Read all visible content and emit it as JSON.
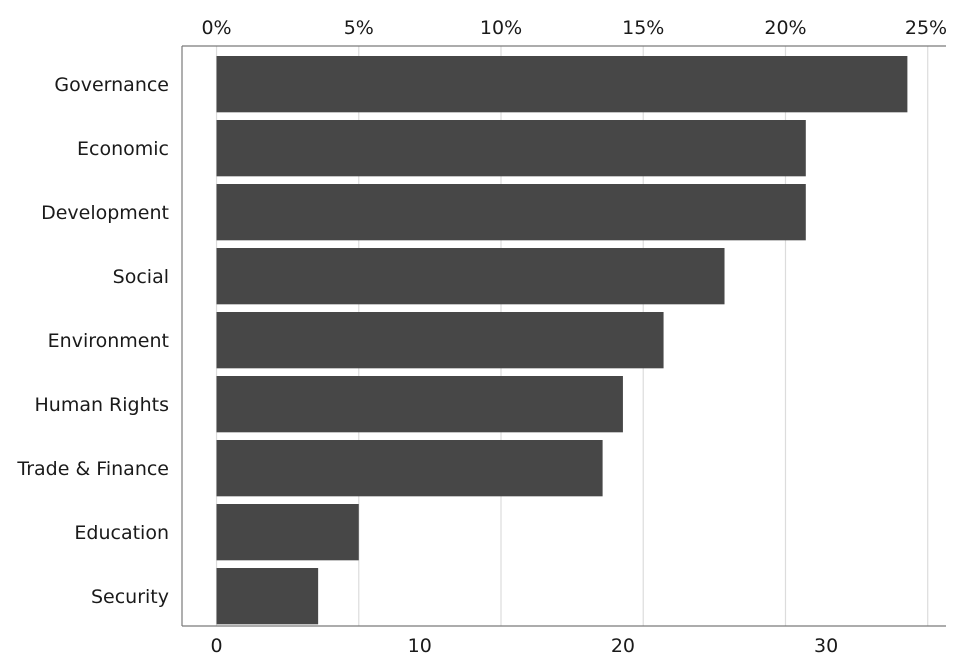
{
  "chart_data": {
    "type": "bar",
    "orientation": "horizontal",
    "categories": [
      "Governance",
      "Economic",
      "Development",
      "Social",
      "Environment",
      "Human Rights",
      "Trade & Finance",
      "Education",
      "Security"
    ],
    "values": [
      34,
      29,
      29,
      25,
      22,
      20,
      19,
      7,
      5
    ],
    "bottom_axis": {
      "ticks": [
        0,
        10,
        20,
        30
      ],
      "tick_labels": [
        "0",
        "10",
        "20",
        "30"
      ],
      "range": [
        -1.7,
        35.9
      ]
    },
    "top_axis": {
      "tick_labels": [
        "0%",
        "5%",
        "10%",
        "15%",
        "20%",
        "25%"
      ],
      "tick_values": [
        0,
        7,
        14,
        21,
        28,
        35
      ]
    },
    "bar_color": "#474747",
    "grid": true,
    "title": "",
    "xlabel": "",
    "ylabel": ""
  }
}
